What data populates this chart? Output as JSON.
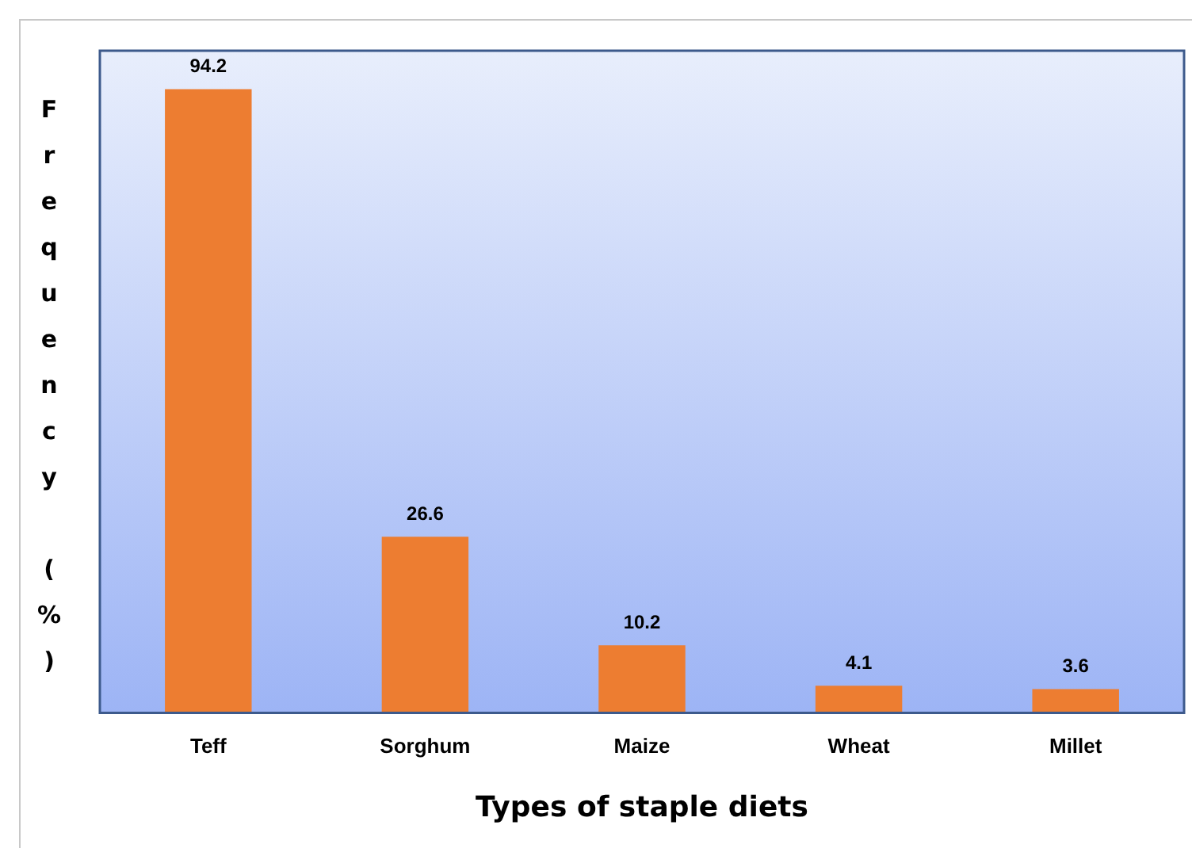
{
  "chart_data": {
    "type": "bar",
    "xlabel": "Types of staple diets",
    "ylabel": "Frequency (%)",
    "categories": [
      "Teff",
      "Sorghum",
      "Maize",
      "Wheat",
      "Millet"
    ],
    "values": [
      94.2,
      26.6,
      10.2,
      4.1,
      3.6
    ],
    "color": "#ed7d31",
    "ylim": [
      0,
      100
    ],
    "data_labels": true,
    "grid": false,
    "legend": false
  }
}
